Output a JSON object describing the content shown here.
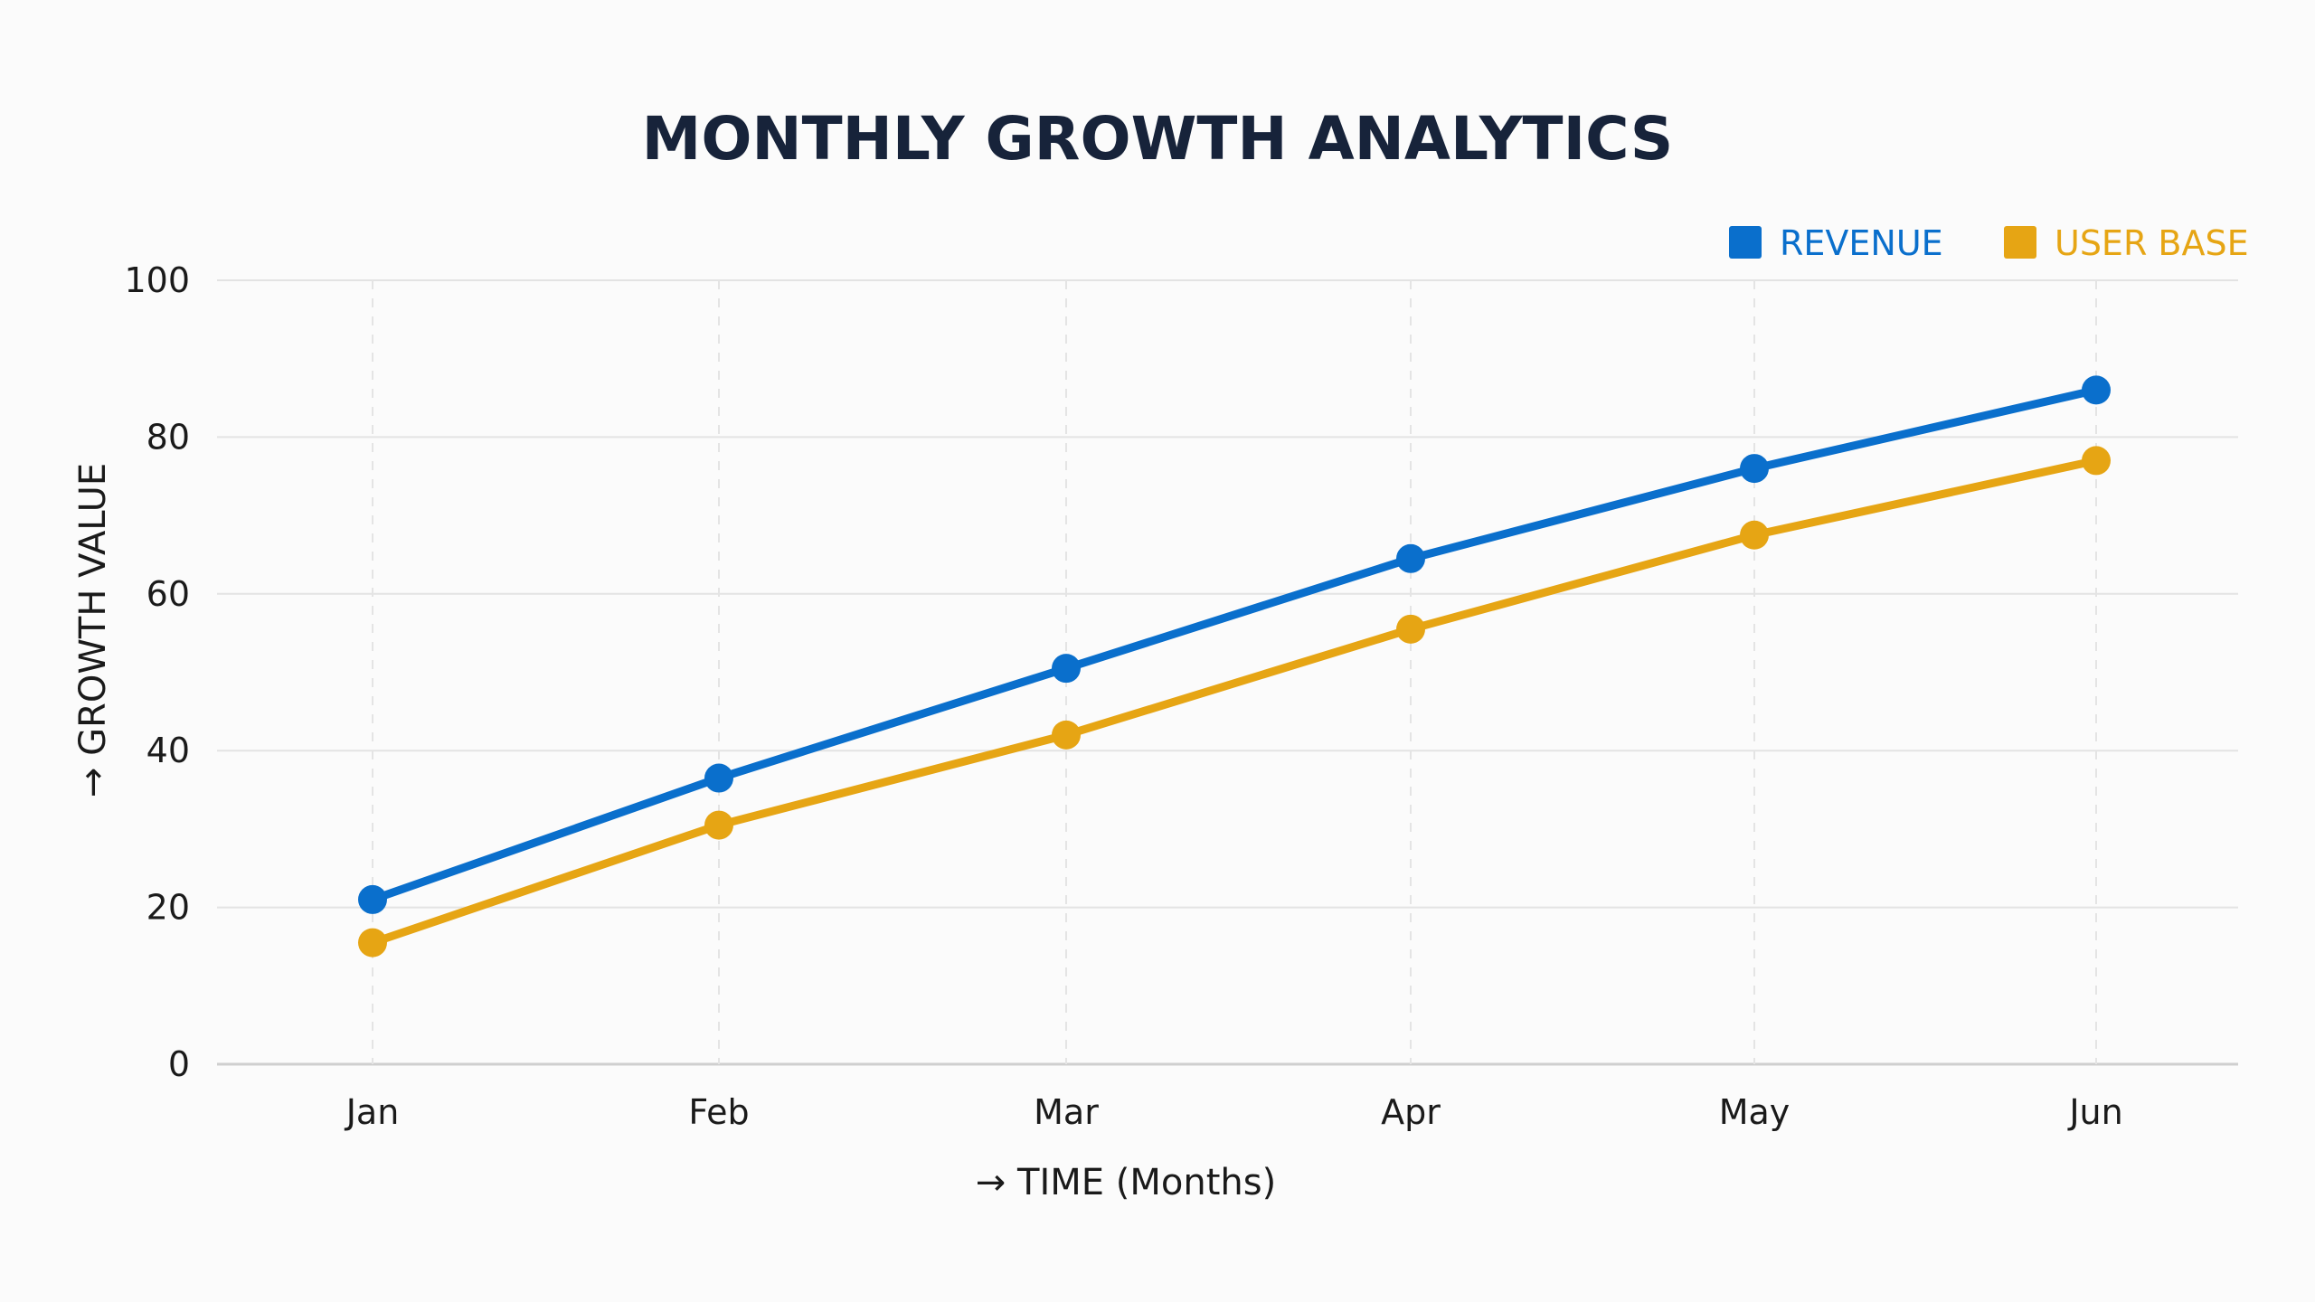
{
  "chart_data": {
    "type": "line",
    "title": "MONTHLY GROWTH ANALYTICS",
    "xlabel": "→ TIME (Months)",
    "ylabel": "→ GROWTH VALUE",
    "categories": [
      "Jan",
      "Feb",
      "Mar",
      "Apr",
      "May",
      "Jun"
    ],
    "ylim": [
      0,
      100
    ],
    "yticks": [
      0,
      20,
      40,
      60,
      80,
      100
    ],
    "grid": true,
    "legend_position": "top-right",
    "series": [
      {
        "name": "REVENUE",
        "color": "#0a6fcc",
        "values": [
          21,
          36.5,
          50.5,
          64.5,
          76,
          86
        ]
      },
      {
        "name": "USER BASE",
        "color": "#e6a514",
        "values": [
          15.5,
          30.5,
          42,
          55.5,
          67.5,
          77
        ]
      }
    ]
  }
}
